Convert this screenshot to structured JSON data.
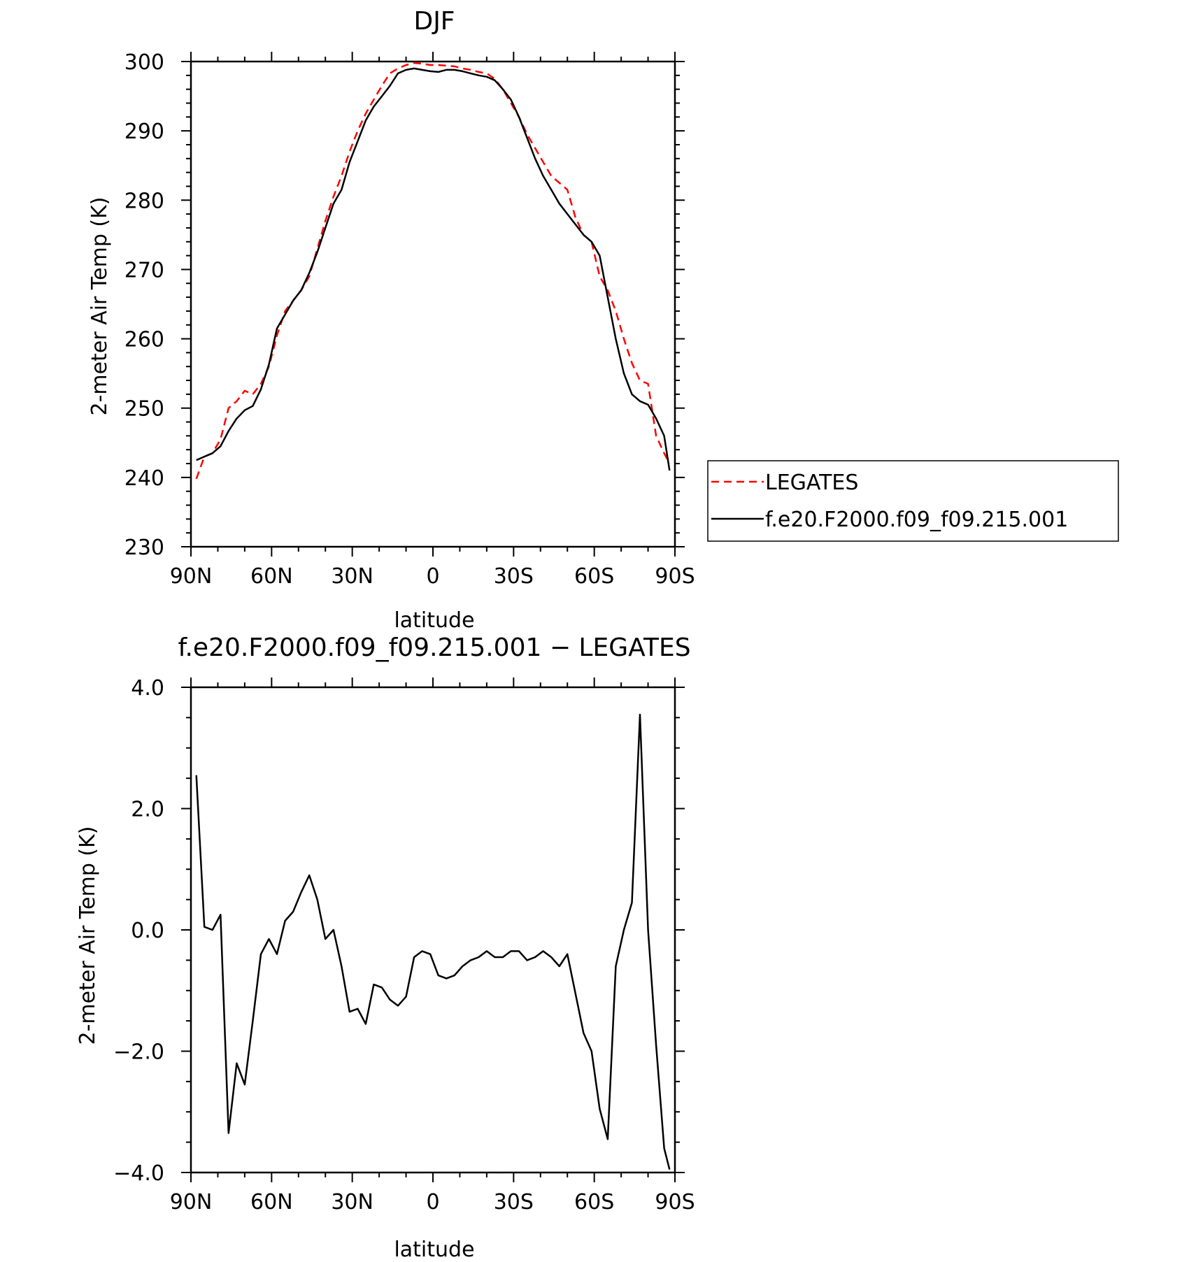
{
  "chart_data": [
    {
      "type": "line",
      "title": "DJF",
      "xlabel": "latitude",
      "ylabel": "2-meter Air Temp (K)",
      "xlim": [
        90,
        -90
      ],
      "ylim": [
        230,
        300
      ],
      "x_ticks": [
        {
          "value": 90,
          "label": "90N"
        },
        {
          "value": 60,
          "label": "60N"
        },
        {
          "value": 30,
          "label": "30N"
        },
        {
          "value": 0,
          "label": "0"
        },
        {
          "value": -30,
          "label": "30S"
        },
        {
          "value": -60,
          "label": "60S"
        },
        {
          "value": -90,
          "label": "90S"
        }
      ],
      "y_ticks": [
        {
          "value": 230,
          "label": "230"
        },
        {
          "value": 240,
          "label": "240"
        },
        {
          "value": 250,
          "label": "250"
        },
        {
          "value": 260,
          "label": "260"
        },
        {
          "value": 270,
          "label": "270"
        },
        {
          "value": 280,
          "label": "280"
        },
        {
          "value": 290,
          "label": "290"
        },
        {
          "value": 300,
          "label": "300"
        }
      ],
      "grid": false,
      "legend_position": "right, outside plot",
      "series": [
        {
          "name": "LEGATES",
          "color": "#ff0000",
          "dash": true,
          "x": [
            88,
            85,
            82,
            79,
            76,
            73,
            70,
            67,
            64,
            61,
            58,
            55,
            52,
            49,
            46,
            43,
            40,
            37,
            34,
            31,
            28,
            25,
            22,
            19,
            16,
            13,
            10,
            7,
            4,
            1,
            -2,
            -5,
            -8,
            -11,
            -14,
            -17,
            -20,
            -23,
            -26,
            -29,
            -32,
            -35,
            -38,
            -41,
            -44,
            -47,
            -50,
            -53,
            -56,
            -59,
            -62,
            -65,
            -68,
            -71,
            -74,
            -77,
            -80,
            -83,
            -86,
            -88
          ],
          "y": [
            239.8,
            243.0,
            243.5,
            245.5,
            250.0,
            251.0,
            252.5,
            252.0,
            253.5,
            256.0,
            260.5,
            264.0,
            265.5,
            267.0,
            269.0,
            273.0,
            277.0,
            280.5,
            283.5,
            287.0,
            290.0,
            292.5,
            294.5,
            296.5,
            298.3,
            299.0,
            299.5,
            299.8,
            299.7,
            299.5,
            299.5,
            299.4,
            299.3,
            299.0,
            298.8,
            298.5,
            298.3,
            297.5,
            296.0,
            294.0,
            292.0,
            289.5,
            287.5,
            285.5,
            283.5,
            282.5,
            281.5,
            277.5,
            275.0,
            274.0,
            269.0,
            267.0,
            264.0,
            260.0,
            256.5,
            254.0,
            253.5,
            246.0,
            243.5,
            242.0
          ]
        },
        {
          "name": "f.e20.F2000.f09_f09.215.001",
          "color": "#000000",
          "dash": false,
          "x": [
            88,
            85,
            82,
            79,
            76,
            73,
            70,
            67,
            64,
            61,
            58,
            55,
            52,
            49,
            46,
            43,
            40,
            37,
            34,
            31,
            28,
            25,
            22,
            19,
            16,
            13,
            10,
            7,
            4,
            1,
            -2,
            -5,
            -8,
            -11,
            -14,
            -17,
            -20,
            -23,
            -26,
            -29,
            -32,
            -35,
            -38,
            -41,
            -44,
            -47,
            -50,
            -53,
            -56,
            -59,
            -62,
            -65,
            -68,
            -71,
            -74,
            -77,
            -80,
            -83,
            -86,
            -88
          ],
          "y": [
            242.5,
            243.0,
            243.5,
            244.5,
            246.7,
            248.5,
            249.7,
            250.3,
            252.7,
            256.3,
            261.5,
            263.5,
            265.5,
            267.0,
            269.5,
            272.5,
            276.0,
            279.5,
            281.5,
            285.5,
            288.5,
            291.5,
            293.5,
            295.0,
            296.5,
            298.3,
            298.8,
            299.0,
            298.8,
            298.6,
            298.5,
            298.8,
            298.8,
            298.6,
            298.3,
            298.0,
            297.8,
            297.3,
            296.0,
            294.5,
            292.0,
            289.0,
            286.0,
            283.5,
            281.5,
            279.5,
            278.0,
            276.5,
            275.0,
            274.0,
            272.0,
            266.0,
            260.0,
            255.0,
            252.0,
            251.0,
            250.5,
            248.5,
            246.0,
            241.0
          ]
        }
      ]
    },
    {
      "type": "line",
      "title": "f.e20.F2000.f09_f09.215.001 - LEGATES",
      "xlabel": "latitude",
      "ylabel": "2-meter Air Temp (K)",
      "xlim": [
        90,
        -90
      ],
      "ylim": [
        -4.0,
        4.0
      ],
      "x_ticks": [
        {
          "value": 90,
          "label": "90N"
        },
        {
          "value": 60,
          "label": "60N"
        },
        {
          "value": 30,
          "label": "30N"
        },
        {
          "value": 0,
          "label": "0"
        },
        {
          "value": -30,
          "label": "30S"
        },
        {
          "value": -60,
          "label": "60S"
        },
        {
          "value": -90,
          "label": "90S"
        }
      ],
      "y_ticks": [
        {
          "value": -4.0,
          "label": "-4.0"
        },
        {
          "value": -2.0,
          "label": "-2.0"
        },
        {
          "value": 0.0,
          "label": "0.0"
        },
        {
          "value": 2.0,
          "label": "2.0"
        },
        {
          "value": 4.0,
          "label": "4.0"
        }
      ],
      "grid": false,
      "series": [
        {
          "color": "#000000",
          "dash": false,
          "x": [
            88,
            85,
            82,
            79,
            76,
            73,
            70,
            67,
            64,
            61,
            58,
            55,
            52,
            49,
            46,
            43,
            40,
            37,
            34,
            31,
            28,
            25,
            22,
            19,
            16,
            13,
            10,
            7,
            4,
            1,
            -2,
            -5,
            -8,
            -11,
            -14,
            -17,
            -20,
            -23,
            -26,
            -29,
            -32,
            -35,
            -38,
            -41,
            -44,
            -47,
            -50,
            -53,
            -56,
            -59,
            -62,
            -65,
            -68,
            -71,
            -74,
            -77,
            -80,
            -83,
            -86,
            -88
          ],
          "y": [
            2.55,
            0.05,
            0.0,
            0.25,
            -3.35,
            -2.2,
            -2.55,
            -1.5,
            -0.4,
            -0.15,
            -0.4,
            0.15,
            0.3,
            0.62,
            0.9,
            0.5,
            -0.15,
            0.0,
            -0.6,
            -1.35,
            -1.3,
            -1.55,
            -0.9,
            -0.95,
            -1.15,
            -1.25,
            -1.1,
            -0.45,
            -0.35,
            -0.4,
            -0.75,
            -0.8,
            -0.75,
            -0.6,
            -0.5,
            -0.45,
            -0.35,
            -0.45,
            -0.45,
            -0.35,
            -0.35,
            -0.5,
            -0.45,
            -0.35,
            -0.45,
            -0.6,
            -0.4,
            -1.05,
            -1.7,
            -2.0,
            -2.95,
            -3.45,
            -0.6,
            0.0,
            0.45,
            3.55,
            0.0,
            -1.9,
            -3.6,
            -3.95
          ]
        }
      ]
    }
  ],
  "legend": {
    "items": [
      "LEGATES",
      "f.e20.F2000.f09_f09.215.001"
    ]
  }
}
